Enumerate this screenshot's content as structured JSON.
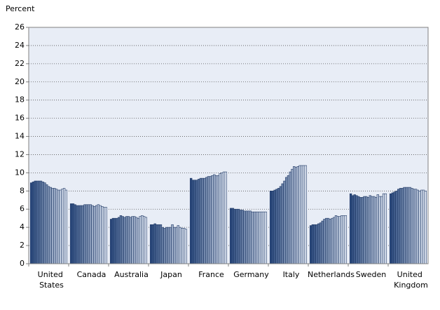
{
  "chart_data": {
    "type": "grouped-bar",
    "y_axis_label": "Percent",
    "categories": [
      "United States",
      "Canada",
      "Australia",
      "Japan",
      "France",
      "Germany",
      "Italy",
      "Netherlands",
      "Sweden",
      "United Kingdom"
    ],
    "values": [
      [
        8.9,
        9.0,
        9.1,
        9.1,
        9.1,
        9.1,
        9.0,
        8.9,
        8.7,
        8.5,
        8.4,
        8.3,
        8.3,
        8.2,
        8.1,
        8.1,
        8.2,
        8.3,
        8.1
      ],
      [
        6.6,
        6.6,
        6.5,
        6.4,
        6.4,
        6.4,
        6.4,
        6.5,
        6.5,
        6.5,
        6.5,
        6.4,
        6.3,
        6.4,
        6.5,
        6.4,
        6.3,
        6.2,
        6.2
      ],
      [
        4.9,
        5.0,
        5.0,
        5.0,
        5.1,
        5.3,
        5.2,
        5.1,
        5.2,
        5.2,
        5.1,
        5.2,
        5.2,
        5.1,
        5.0,
        5.2,
        5.3,
        5.2,
        5.1
      ],
      [
        4.3,
        4.3,
        4.4,
        4.3,
        4.3,
        4.3,
        4.0,
        3.9,
        4.0,
        4.0,
        4.0,
        4.3,
        4.0,
        4.0,
        4.2,
        4.0,
        3.9,
        3.9,
        3.8
      ],
      [
        9.4,
        9.2,
        9.2,
        9.2,
        9.3,
        9.4,
        9.4,
        9.4,
        9.5,
        9.6,
        9.6,
        9.7,
        9.8,
        9.7,
        9.7,
        9.9,
        10.0,
        10.1,
        10.1
      ],
      [
        6.1,
        6.1,
        6.0,
        6.0,
        6.0,
        5.9,
        5.9,
        5.8,
        5.8,
        5.8,
        5.8,
        5.7,
        5.7,
        5.7,
        5.7,
        5.7,
        5.7,
        5.7,
        5.7
      ],
      [
        8.0,
        8.0,
        8.1,
        8.2,
        8.3,
        8.5,
        8.8,
        9.1,
        9.5,
        9.7,
        10.1,
        10.4,
        10.7,
        10.6,
        10.7,
        10.8,
        10.8,
        10.8,
        10.8
      ],
      [
        4.2,
        4.3,
        4.3,
        4.3,
        4.4,
        4.5,
        4.7,
        4.9,
        5.0,
        5.0,
        4.9,
        5.0,
        5.1,
        5.3,
        5.2,
        5.2,
        5.3,
        5.3,
        5.3
      ],
      [
        7.7,
        7.5,
        7.6,
        7.5,
        7.4,
        7.3,
        7.3,
        7.4,
        7.4,
        7.3,
        7.5,
        7.4,
        7.4,
        7.3,
        7.6,
        7.4,
        7.4,
        7.7,
        7.7
      ],
      [
        7.7,
        7.8,
        7.9,
        8.0,
        8.2,
        8.3,
        8.3,
        8.4,
        8.4,
        8.4,
        8.4,
        8.3,
        8.2,
        8.2,
        8.1,
        8.0,
        8.1,
        8.1,
        8.0
      ]
    ],
    "color_range": [
      "#2b4a7e",
      "#e4ebf6"
    ],
    "ylim": [
      0,
      26
    ],
    "yticks": [
      0,
      2,
      4,
      6,
      8,
      10,
      12,
      14,
      16,
      18,
      20,
      22,
      24,
      26
    ],
    "grid": true
  }
}
